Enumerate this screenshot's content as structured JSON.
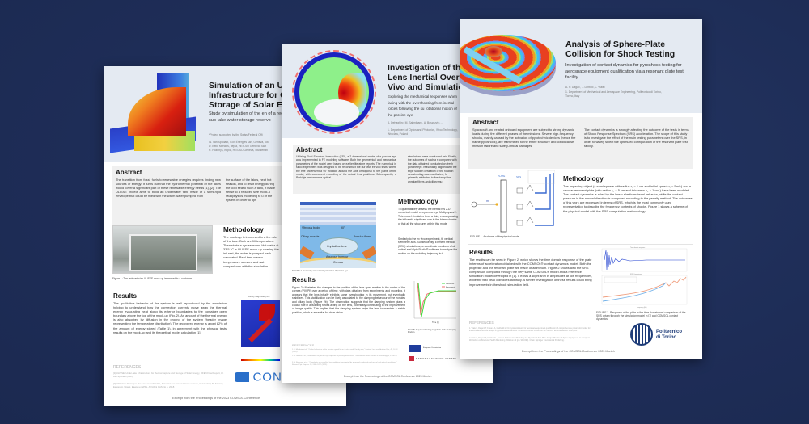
{
  "background_color": "#1e2d57",
  "posters": [
    {
      "id": "underwater",
      "title_lines": [
        "Simulation of an Unde",
        "Infrastructure for Capt",
        "Storage of Solar Energ"
      ],
      "subtitle": "Study by simulation of the en of a reduced size ULISSE mo sub-lake water storage reservo",
      "note": "*Project supported by the Swiss Federal Offi",
      "authors": [
        "W. Van Sprolant, CoS Énergies sàrl, Geneva, Sw",
        "D. Bello Mendes, hepia, HES-SO Geneva, Swit",
        "R. Rozenys, hepia, HES-SO Geneva, Switzerlan"
      ],
      "abstract_heading": "Abstract",
      "abstract_col1": "The transition from fossil fuels to renewable energies requires finding new sources of energy. It turns out that the hydrothermal potential of the lakes would cover a significant part of these renewable energy needs [1], [2]. The ULISSE project aims to build an underwater tank made of a semi-rigid envelope that could be filled with the warm water pumped from",
      "abstract_col2": "the surface of the lakes, heat hot season, and to restit energy during the cold seaso such a tank, it made sense to a reduced size mock-u Multiphysics modelling to u of the system in order to opt",
      "figure1_caption": "Figure 1: The reduced size ULISSE mock-up immersed in a container",
      "methodology_heading": "Methodology",
      "methodology_text": "The mock-up is immersed in a the role of the lake. Both are fill temperature. Then starts a cyc seasons. Hot water at 33.5 °C is ULISSE mock-up chasing the init rest, the water is pumped back calculated. Real-time measu temperature sensors and wat comparisons with the simulation",
      "results_heading": "Results",
      "results_text": "The qualitative behavior of the system is well reproduced by the simulation helping to understand how the convection currents move away the thermal energy evacuating heat along its exterior boundaries to the container open boundary above the top of the mock-up (Fig. 2). An amount of the thermal energy is also absorbed by diffusion in the ground of the system (header image representing the temperature distribution). The recovered energy is about 82% of the amount of energy stored (Table 1), in agreement with the physical tests results on the mock-up and its theoretical model calculation [1].",
      "figure2_title": "Velocity magnitude (m/s)",
      "references_heading": "REFERENCES",
      "references": [
        "[1] ULISSE, Under-lake infrastructure for thermal capture and Storage of Solar Energy, OFEN Final Report, W. van Sprolant (2023)",
        "[2] Utilisation thermique des eaux superficielles, Potentiel des lacs et rivières suisses, A. Gaudard, M. Schmid, Eawag, A. Wüest, Eawag et EPFL, AQUA & GAS No 6, 2018"
      ],
      "logo_text": "CON",
      "footer": "Excerpt from the Proceedings of the 2023 COMSOL Conference"
    },
    {
      "id": "lens",
      "title_lines": [
        "Investigation of the",
        "Lens Inertial Oversh",
        "Vivo and Simulation"
      ],
      "subtitle": "Exploring the mechanical responses when facing with the overshooting from inertial forces following the su rotational motion of the porcine eye",
      "authors": [
        "A. Dehaghin¹, M. Salimibani¹, A. Boszczyk¹, ..."
      ],
      "affiliation": "1. Department of Optics and Photonics, Wroc Technology, Wroclaw, Poland",
      "abstract_heading": "Abstract",
      "abstract_col1": "Utilizing Fluid-Structure Interaction (FSI), a 2-dimensional model of a porcine eye was implemented in FE modeling software. Both the geometrical and mechanical parameters of the model were based on earlier literature reports. The numerical in silico experiment was designed to be reconstruct the our own ex vivo tests, where the eye underwent a 90° rotation around the axis orthogonal to the plane of the model, with concurrent recording of the actual lens positions. Subsequently, a Purkinje performance optical",
      "abstract_col2": "simulations were conducted usin Finally, the outcomes of such a s compared with the data obtained conducted on fresh porcine eye. reasonably aligned with the expe sudden cessation of the rotation overshooting was manifested, fo primarily attributed to the dampi the annular fibers and ciliary mu",
      "figure1_labels": [
        "Vitreous body",
        "Ciliary muscle",
        "Crystalline lens",
        "Annular fibers",
        "Aqueous humour",
        "Cornea",
        "90°"
      ],
      "figure1_caption": "FIGURE 1. Geometry and material properties of porcine eye.",
      "methodology_heading": "Methodology",
      "methodology_text": "To quantitatively assess the inertial res 2-D numerical model of a porcine eye Multiphysics®. This model simulates th as a fluid, encompassing the influentia significant role in the biomechanics of that all the structures within this mode",
      "methodology_text2": "Similarly to the ex vivo experiment, th vertical symmetry axis. Subsequently, Element Method (FEM) simulations, w coordinate positions of all optical surf OpticStudio® software to analyze the motion on the wobbling trajectory in t",
      "results_heading": "Results",
      "results_text": "Figure 2a illustrates the changes in the position of the lens apex relative to the center of the cornea (PIV-PI) over a period of time, with data obtained from experiments and modeling. It appears that the lens initially exhibits some overshooting in its movement, but eventually stabilizes. This stabilization can be likely associated to the damping behaviour of the zonules and ciliary body (Figure 2b). The observation suggests that the damping system plays a crucial role in absorbing forces acting on the lens, potentially contributing to the improvement of image quality. This implies that the damping system helps the lens to maintain a stable position, which is essential for clear vision.",
      "chart_legend": [
        "Simulation",
        "Experiment"
      ],
      "chart_xlabel": "Time (s)",
      "figure2_caption": "FIGURE 2. a) Overshooting magnitude in the d damping function.",
      "references_heading": "REFERENCES",
      "references": [
        "1. F. Mirabain et al., \"Ocular behaviour of the porcine eyeball in an in-vitro model for dry eye,\" Contact Lens and Anterior Eye, 45, 10 1F (2018).",
        "2. R. Marani et al., \"Simulations of porcine eye exposure to primary blast insult,\" Translational vision science & technology, 4, 8 (2015).",
        "3. A. Boszczyk et al., \"Complexity of crystalline lens wobbling investigated by means of combined mechanical and optical simulations,\" Biomed. Opt. Express 14, 2465-2477 (2023)."
      ],
      "logo_eu": "European Commission",
      "logo_ncn": "National Science Centre",
      "footer": "Excerpt from the Proceedings of the COMSOL Conference 2023 Munich"
    },
    {
      "id": "sphere",
      "title_lines": [
        "Analysis of Sphere-Plate",
        "Collision for Shock Testing"
      ],
      "subtitle": "Investigation of contact dynamics for pyroshock testing for aerospace equipment qualification via a resonant plate test facility",
      "authors": [
        "A. P. Dagai¹, L. Lentini¹, L. Viale¹"
      ],
      "affiliation": "1. Department of Mechanical and Aerospace Engineering, Politecnico di Torino, Torino, Italy",
      "abstract_heading": "Abstract",
      "abstract_col1": "Spacecraft and related onboard equipment are subject to strong dynamic loads during the different phases of the missions. Severe high-frequency shocks, mainly caused by the activation of pyrotechnic devices (hence the name pyroshock), are transmitted to the entire structure and could cause mission failure and safety-critical damages.",
      "abstract_col2": "The contact dynamics is strongly affecting the outcome of the tests in terms of Shock Response Spectrum (SRS) acceleration. The scope of this study is to investigate the effect of the main testing parameters over the SRS, in order to wisely select the optimized configuration of the resonant plate test facility.",
      "figure1_labels": [
        "PLATE",
        "SRS",
        "m"
      ],
      "figure1_caption": "FIGURE 1. A scheme of the physical model.",
      "methodology_heading": "Methodology",
      "methodology_text": "The impacting object (a semi-sphere with radius rₛ = 1 cm and initial speed vₛ = 5m/s) and a circular resonant plate (with radius rₚ = 5 cm and thickness sₚ = 1 cm ) have been modeled. The contact dynamics is ruled by the linear elastic material behavior, while the contact pressure in the normal direction is computed according to the penalty method. The outcomes of this work are expressed in terms of SRS, which is the most commonly used representation to describe the frequency contents of shocks. Figure 1 shows a scheme of the physical model with the SRS computation methodology.",
      "results_heading": "Results",
      "results_text": "The results can be seen in Figure 2, which shows the time domain response of the plate in terms of acceleration obtained with the COMSOL® contact dynamics model. Both the projectile and the resonant plate are made of aluminum. Figure 2 shows also the SRS comparison computed through the very same COMSOL® model and a reference simulation model developed in [1]. It exists a slight shift in amplitudes at low frequencies, while the first peak coincides faithfully. A further investigation of these results could bring improvements in the shock simulation field.",
      "chart_top_title": "Time domain response",
      "chart_bottom_title": "SRS Comparison",
      "chart_xlabel": "Frequency (Hz)",
      "figure2_caption": "FIGURE 2. Response of the plate in the time domain and comparison of the SRS obtain through the simulation model in [1] and COMSOL contact dynamics",
      "references_heading": "REFERENCES",
      "references": [
        "1. Viale L, Dagai AP, Fasana A, Garibaldi L. On pyroshock tests for aerospace equipment qualification: A comprehensive parametric model for the simulation and the design of pyroshock test facilities. INTERNATIONAL JOURNAL OF IMPACT ENGINEERING. 2023;180.",
        "2. Viale L, Dagai AP, Garibaldi L, Fasana A. Numerical Modeling of a Pyroshock Test Plate for Qualification of Space Equipment. In European Workshop on Structural Health Monitoring 2022 Jun 22 (pp. 993-999). Cham: Springer International Publishing."
      ],
      "logo_text": [
        "Politecnico",
        "di Torino"
      ],
      "footer": "Excerpt from the Proceedings of the COMSOL Conference 2023 Munich"
    }
  ]
}
